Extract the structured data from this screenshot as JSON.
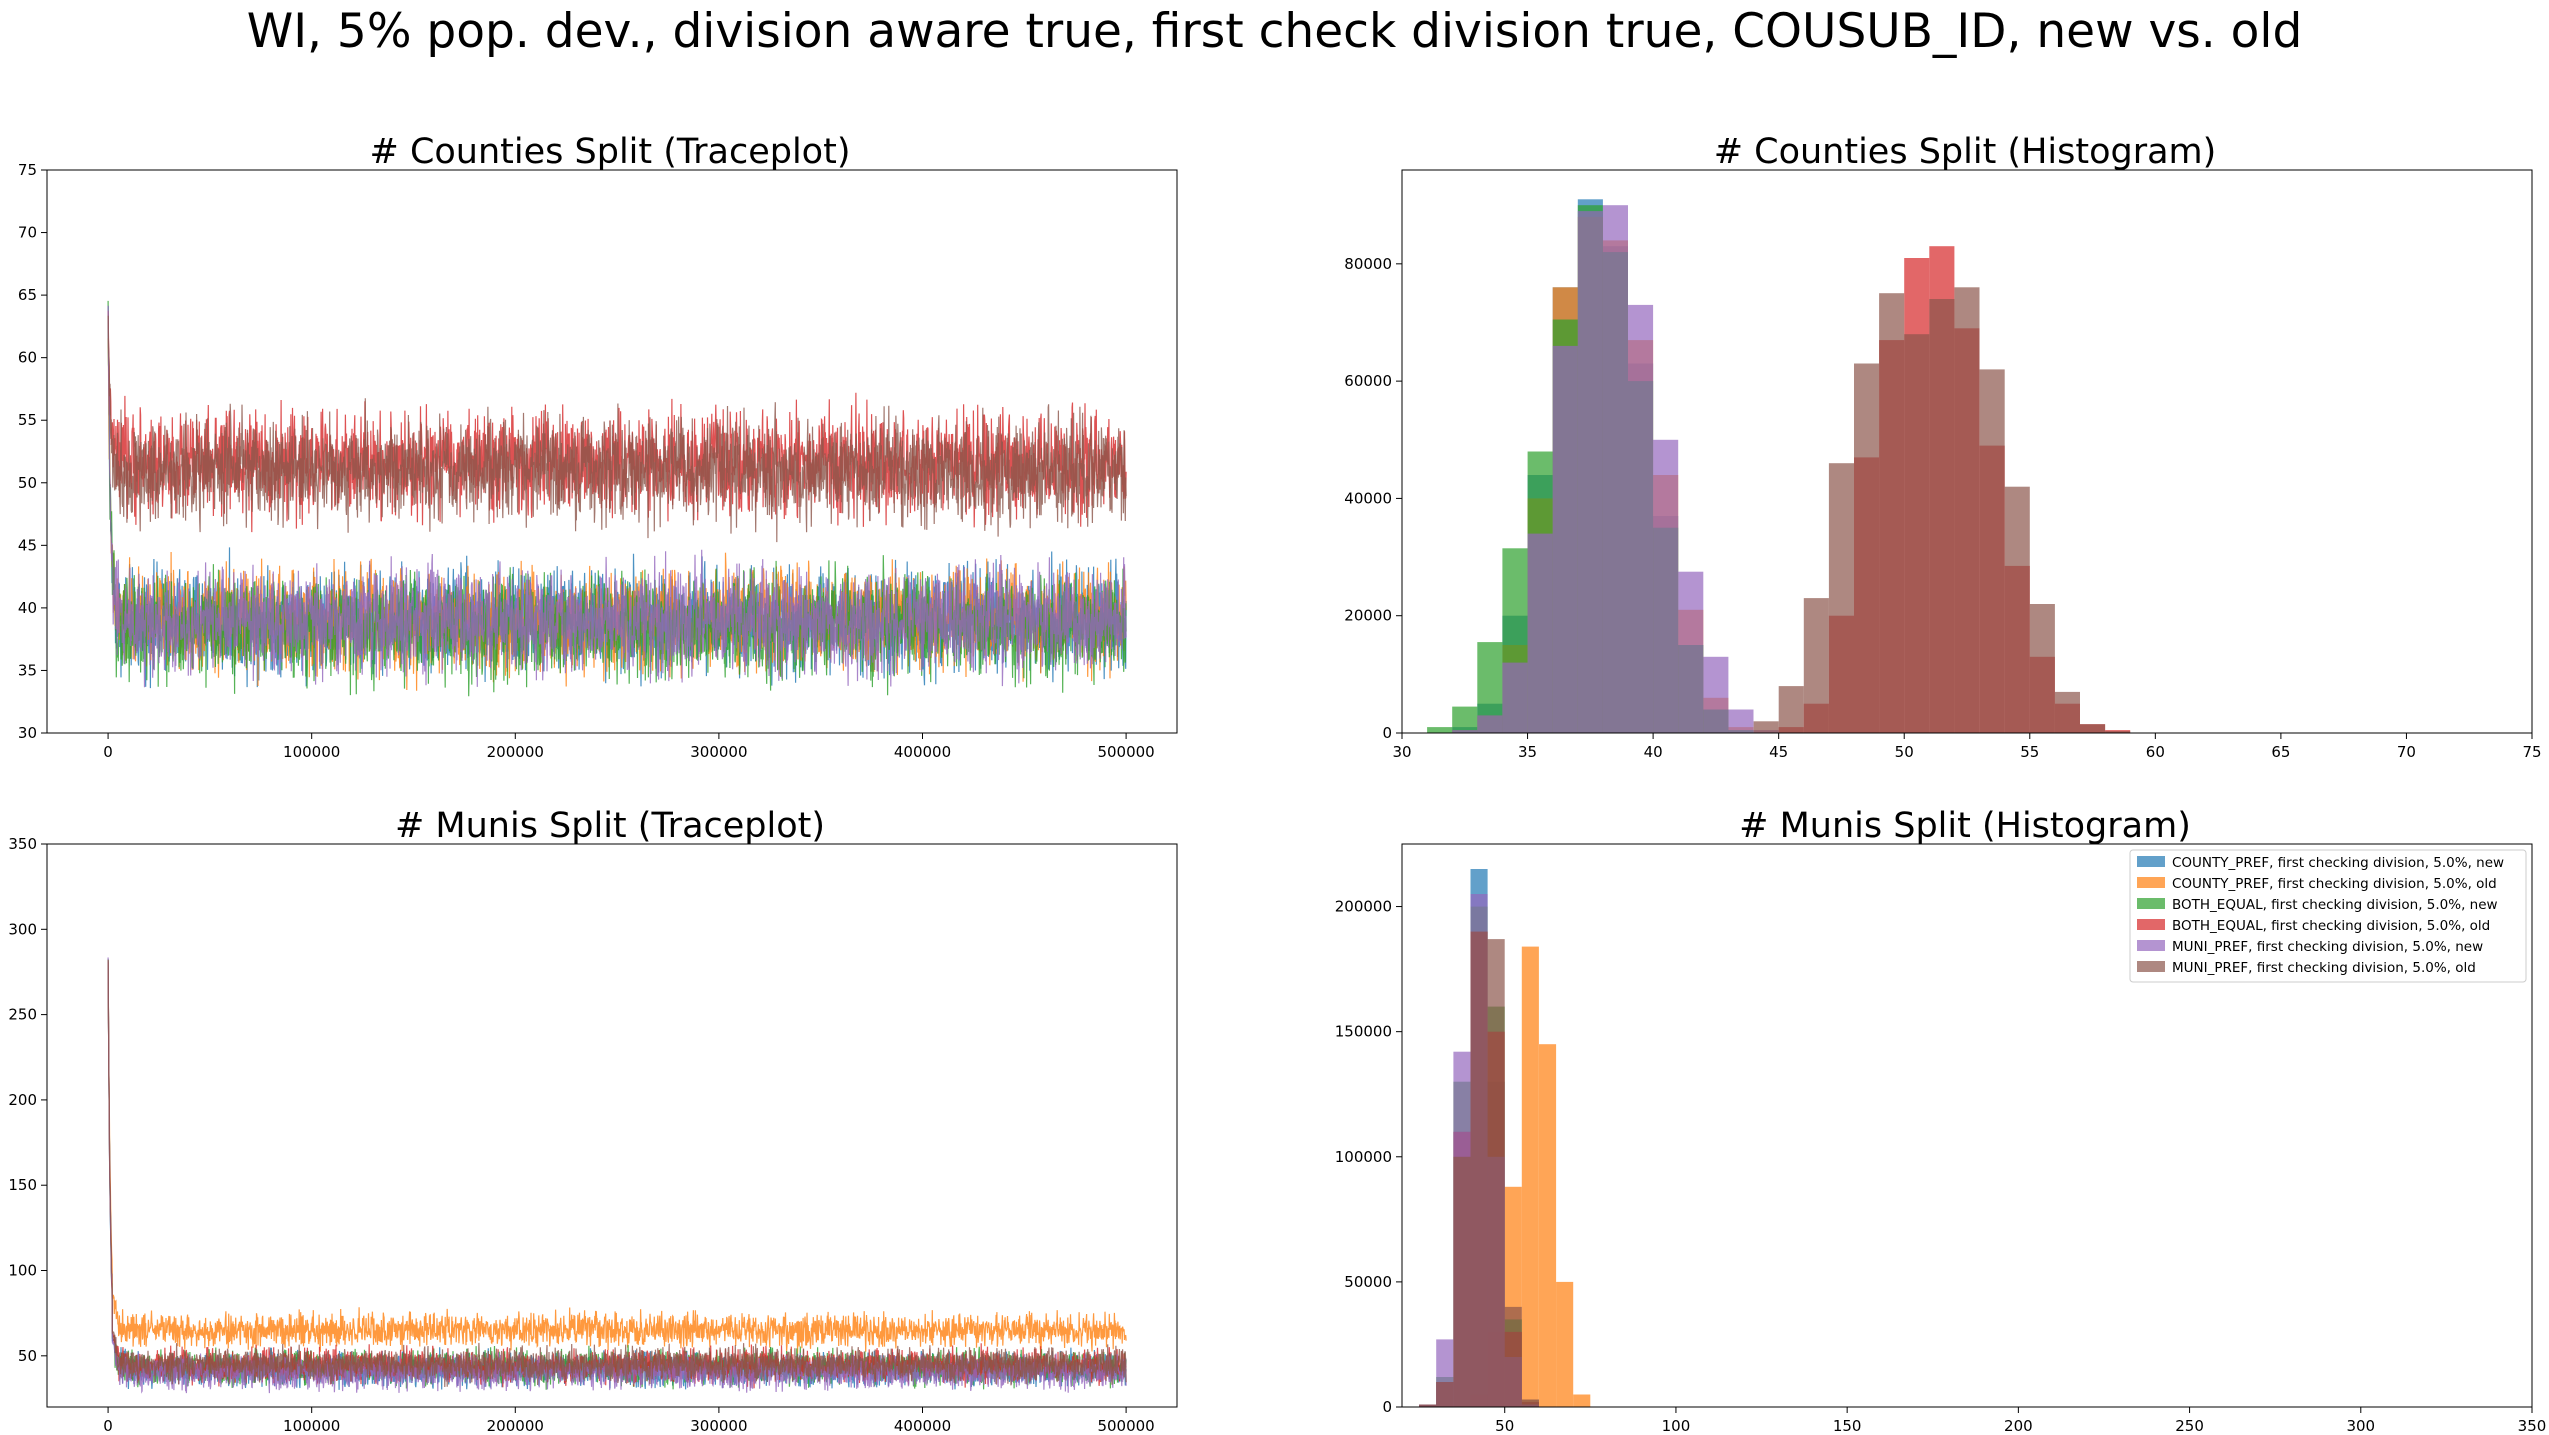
{
  "figure": {
    "suptitle": "WI, 5% pop. dev., division aware true, first check division true, COUSUB_ID, new vs. old"
  },
  "colors": [
    "#1f77b4",
    "#ff7f0e",
    "#2ca02c",
    "#d62728",
    "#9467bd",
    "#8c564b"
  ],
  "legend": {
    "placement": "top-right",
    "entries": [
      "COUNTY_PREF, first checking division, 5.0%, new",
      "COUNTY_PREF, first checking division, 5.0%, old",
      "BOTH_EQUAL, first checking division, 5.0%, new",
      "BOTH_EQUAL, first checking division, 5.0%, old",
      "MUNI_PREF, first checking division, 5.0%, new",
      "MUNI_PREF, first checking division, 5.0%, old"
    ]
  },
  "chart_data": [
    {
      "type": "line",
      "title": "# Counties Split (Traceplot)",
      "xlim": [
        -30000,
        525000
      ],
      "ylim": [
        30,
        75
      ],
      "xticks": [
        0,
        100000,
        200000,
        300000,
        400000,
        500000
      ],
      "yticks": [
        30,
        35,
        40,
        45,
        50,
        55,
        60,
        65,
        70,
        75
      ],
      "series": [
        {
          "start": 64,
          "mean": 39,
          "spread": 2.5,
          "min": 31,
          "max": 46
        },
        {
          "start": 62,
          "mean": 39,
          "spread": 2.5,
          "min": 32,
          "max": 46
        },
        {
          "start": 64,
          "mean": 38.5,
          "spread": 2.5,
          "min": 30,
          "max": 46
        },
        {
          "start": 63,
          "mean": 51.5,
          "spread": 2.5,
          "min": 44,
          "max": 60
        },
        {
          "start": 64,
          "mean": 39,
          "spread": 2.5,
          "min": 30,
          "max": 47
        },
        {
          "start": 63,
          "mean": 51,
          "spread": 2.5,
          "min": 43,
          "max": 59
        }
      ]
    },
    {
      "type": "bar",
      "title": "# Counties Split (Histogram)",
      "xlim": [
        30,
        75
      ],
      "ylim": [
        0,
        96000
      ],
      "xticks": [
        30,
        35,
        40,
        45,
        50,
        55,
        60,
        65,
        70,
        75
      ],
      "yticks": [
        0,
        20000,
        40000,
        60000,
        80000
      ],
      "bin_width": 1,
      "bin_start": 31,
      "series": [
        {
          "values": [
            0,
            1000,
            5000,
            20000,
            44000,
            76000,
            91000,
            83000,
            63000,
            37000,
            15000,
            4000,
            500
          ]
        },
        {
          "values": [
            0,
            500,
            3000,
            15000,
            40000,
            76000,
            88000,
            84000,
            67000,
            44000,
            21000,
            6000,
            1000
          ]
        },
        {
          "values": [
            1000,
            4500,
            15500,
            31500,
            48000,
            70500,
            90000,
            82000,
            60000,
            35000,
            15000,
            4000,
            500
          ]
        },
        {
          "values": [
            0,
            0,
            0,
            0,
            0,
            0,
            0,
            0,
            0,
            0,
            0,
            0,
            0,
            0,
            1000,
            5000,
            20000,
            47000,
            67000,
            81000,
            83000,
            69000,
            49000,
            28500,
            13000,
            5000,
            1500,
            500
          ]
        },
        {
          "values": [
            0,
            500,
            3000,
            12000,
            34000,
            66000,
            89000,
            90000,
            73000,
            50000,
            27500,
            13000,
            4000,
            500
          ]
        },
        {
          "values": [
            0,
            0,
            0,
            0,
            0,
            0,
            0,
            0,
            0,
            0,
            0,
            0,
            0,
            2000,
            8000,
            23000,
            46000,
            63000,
            75000,
            68000,
            74000,
            76000,
            62000,
            42000,
            22000,
            7000,
            1500,
            300
          ]
        }
      ]
    },
    {
      "type": "line",
      "title": "# Munis Split (Traceplot)",
      "xlim": [
        -30000,
        525000
      ],
      "ylim": [
        20,
        350
      ],
      "xticks": [
        0,
        100000,
        200000,
        300000,
        400000,
        500000
      ],
      "yticks": [
        50,
        100,
        150,
        200,
        250,
        300,
        350
      ],
      "series": [
        {
          "start": 282,
          "mean": 42,
          "spread": 6,
          "min": 30,
          "max": 60
        },
        {
          "start": 282,
          "mean": 65,
          "spread": 6,
          "min": 50,
          "max": 86
        },
        {
          "start": 282,
          "mean": 43,
          "spread": 6,
          "min": 30,
          "max": 62
        },
        {
          "start": 282,
          "mean": 44,
          "spread": 6,
          "min": 30,
          "max": 63
        },
        {
          "start": 282,
          "mean": 40,
          "spread": 6,
          "min": 28,
          "max": 58
        },
        {
          "start": 282,
          "mean": 45,
          "spread": 6,
          "min": 31,
          "max": 64
        }
      ]
    },
    {
      "type": "bar",
      "title": "# Munis Split (Histogram)",
      "xlim": [
        20,
        350
      ],
      "ylim": [
        0,
        225000
      ],
      "xticks": [
        50,
        100,
        150,
        200,
        250,
        300,
        350
      ],
      "yticks": [
        0,
        50000,
        100000,
        150000,
        200000
      ],
      "bin_width": 5,
      "bin_start": 25,
      "series": [
        {
          "values": [
            1000,
            10000,
            110000,
            215000,
            130000,
            30000,
            3000
          ]
        },
        {
          "values": [
            0,
            0,
            0,
            5000,
            30000,
            88000,
            184000,
            145000,
            50000,
            5000
          ]
        },
        {
          "values": [
            1000,
            12000,
            130000,
            200000,
            160000,
            35000,
            2000
          ]
        },
        {
          "values": [
            1000,
            10000,
            110000,
            190000,
            150000,
            30000,
            2000
          ]
        },
        {
          "values": [
            1000,
            27000,
            142000,
            205000,
            100000,
            20000,
            1000
          ]
        },
        {
          "values": [
            1000,
            10000,
            100000,
            190000,
            187000,
            40000,
            3000
          ]
        }
      ]
    }
  ]
}
